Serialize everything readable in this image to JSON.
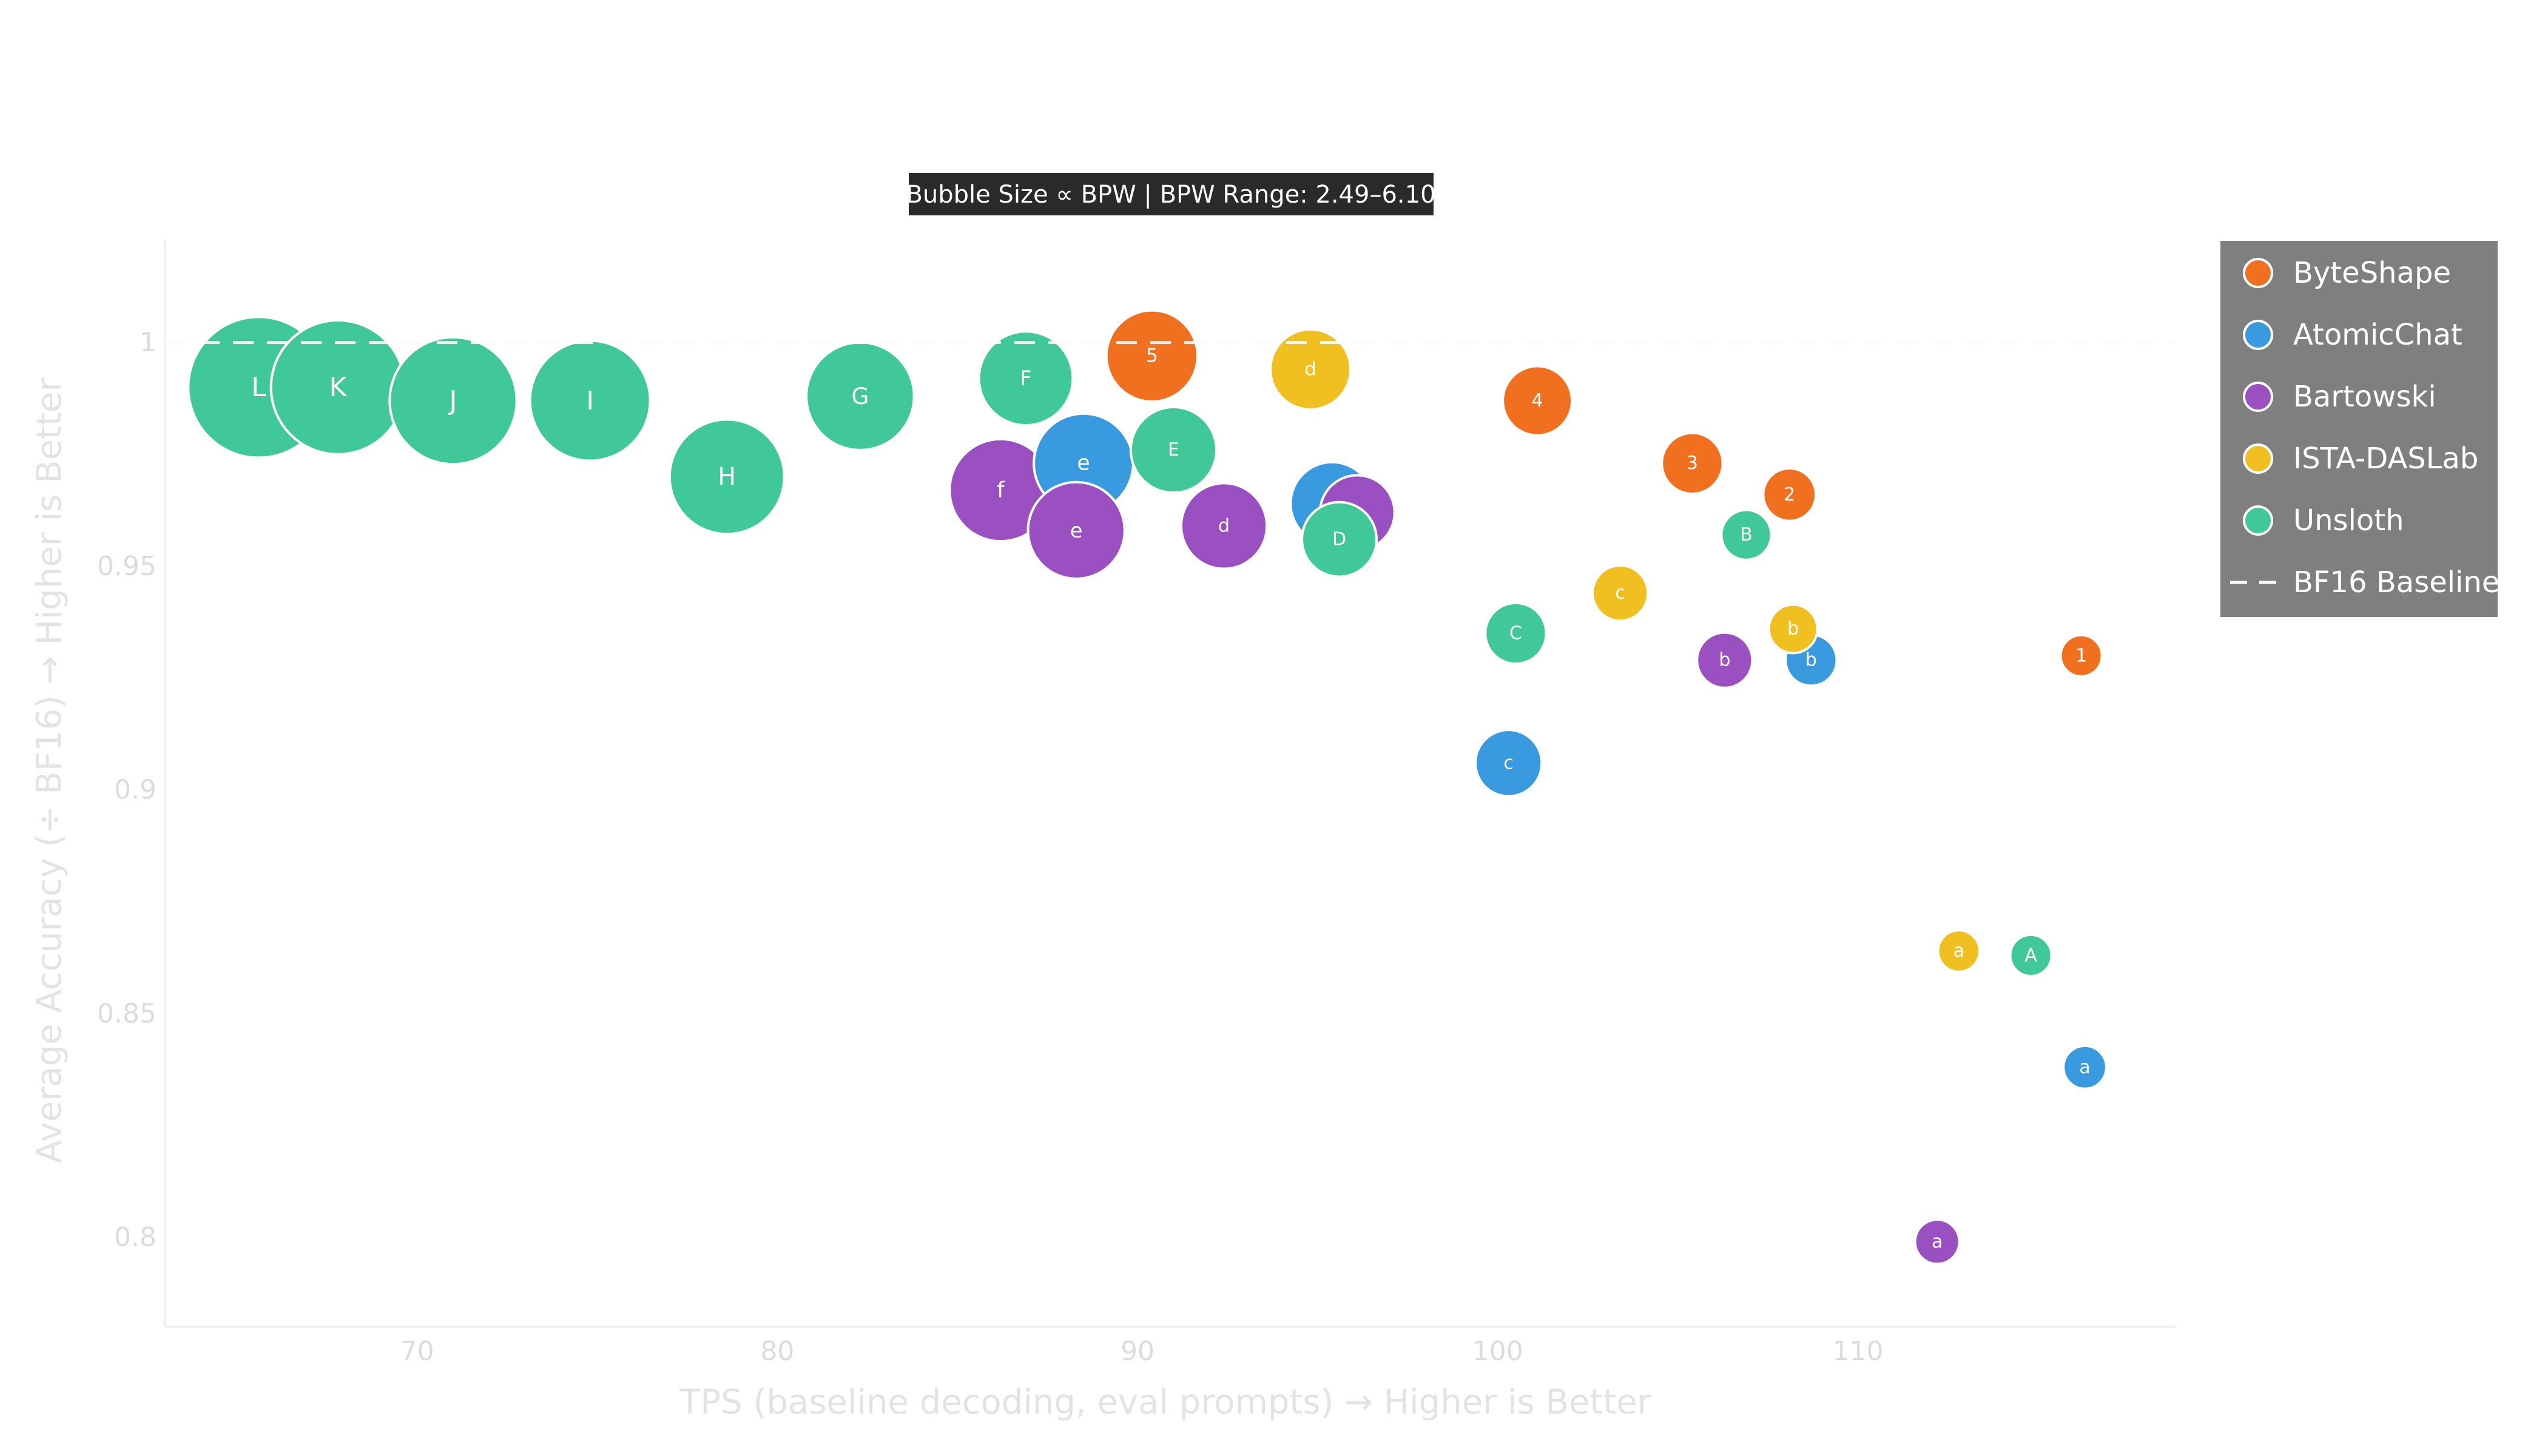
{
  "chart_data": {
    "type": "scatter",
    "subtitle": "Bubble Size ∝ BPW | BPW Range: 2.49–6.10",
    "xlabel": "TPS (baseline decoding, eval prompts) → Higher is Better",
    "ylabel": "Average Accuracy (÷ BF16) → Higher is Better",
    "xlim": [
      63,
      118.8
    ],
    "ylim": [
      0.78,
      1.023
    ],
    "xticks": [
      70,
      80,
      90,
      100,
      110
    ],
    "yticks": [
      0.8,
      0.85,
      0.9,
      0.95,
      1
    ],
    "ytick_labels": [
      "0.8",
      "0.85",
      "0.9",
      "0.95",
      "1"
    ],
    "bpw_range": [
      2.49,
      6.1
    ],
    "grid": false,
    "legend_position": "top-right",
    "baseline": {
      "name": "BF16 Baseline",
      "y": 1.0
    },
    "series": [
      {
        "name": "ByteShape",
        "color": "#f07020",
        "points": [
          {
            "label": "5",
            "x": 90.4,
            "y": 0.997,
            "bpw": 4.3
          },
          {
            "label": "4",
            "x": 101.1,
            "y": 0.987,
            "bpw": 3.5
          },
          {
            "label": "3",
            "x": 105.4,
            "y": 0.973,
            "bpw": 3.2
          },
          {
            "label": "2",
            "x": 108.1,
            "y": 0.966,
            "bpw": 2.9
          },
          {
            "label": "1",
            "x": 116.2,
            "y": 0.93,
            "bpw": 2.49
          }
        ]
      },
      {
        "name": "AtomicChat",
        "color": "#3a9ae0",
        "points": [
          {
            "label": "e",
            "x": 88.5,
            "y": 0.973,
            "bpw": 4.6
          },
          {
            "label": "d",
            "x": 95.4,
            "y": 0.964,
            "bpw": 4.0
          },
          {
            "label": "c",
            "x": 100.3,
            "y": 0.906,
            "bpw": 3.4
          },
          {
            "label": "b",
            "x": 108.7,
            "y": 0.929,
            "bpw": 2.85
          },
          {
            "label": "a",
            "x": 116.3,
            "y": 0.838,
            "bpw": 2.55
          }
        ]
      },
      {
        "name": "Bartowski",
        "color": "#9a50c0",
        "points": [
          {
            "label": "f",
            "x": 86.2,
            "y": 0.967,
            "bpw": 4.7
          },
          {
            "label": "e",
            "x": 88.3,
            "y": 0.958,
            "bpw": 4.5
          },
          {
            "label": "d",
            "x": 92.4,
            "y": 0.959,
            "bpw": 4.1
          },
          {
            "label": "c",
            "x": 96.1,
            "y": 0.962,
            "bpw": 3.7
          },
          {
            "label": "b",
            "x": 106.3,
            "y": 0.929,
            "bpw": 3.0
          },
          {
            "label": "a",
            "x": 112.2,
            "y": 0.799,
            "bpw": 2.6
          }
        ]
      },
      {
        "name": "ISTA-DASLab",
        "color": "#f0c020",
        "points": [
          {
            "label": "d",
            "x": 94.8,
            "y": 0.994,
            "bpw": 3.9
          },
          {
            "label": "c",
            "x": 103.4,
            "y": 0.944,
            "bpw": 3.0
          },
          {
            "label": "b",
            "x": 108.2,
            "y": 0.936,
            "bpw": 2.75
          },
          {
            "label": "a",
            "x": 112.8,
            "y": 0.864,
            "bpw": 2.5
          }
        ]
      },
      {
        "name": "Unsloth",
        "color": "#40c898",
        "points": [
          {
            "label": "L",
            "x": 65.6,
            "y": 0.99,
            "bpw": 6.1
          },
          {
            "label": "K",
            "x": 67.8,
            "y": 0.99,
            "bpw": 5.85
          },
          {
            "label": "J",
            "x": 71.0,
            "y": 0.987,
            "bpw": 5.6
          },
          {
            "label": "I",
            "x": 74.8,
            "y": 0.987,
            "bpw": 5.35
          },
          {
            "label": "H",
            "x": 78.6,
            "y": 0.97,
            "bpw": 5.15
          },
          {
            "label": "G",
            "x": 82.3,
            "y": 0.988,
            "bpw": 4.9
          },
          {
            "label": "F",
            "x": 86.9,
            "y": 0.992,
            "bpw": 4.4
          },
          {
            "label": "E",
            "x": 91.0,
            "y": 0.976,
            "bpw": 4.1
          },
          {
            "label": "D",
            "x": 95.6,
            "y": 0.956,
            "bpw": 3.7
          },
          {
            "label": "C",
            "x": 100.5,
            "y": 0.935,
            "bpw": 3.2
          },
          {
            "label": "B",
            "x": 106.9,
            "y": 0.957,
            "bpw": 2.8
          },
          {
            "label": "A",
            "x": 114.8,
            "y": 0.863,
            "bpw": 2.49
          }
        ]
      }
    ]
  }
}
